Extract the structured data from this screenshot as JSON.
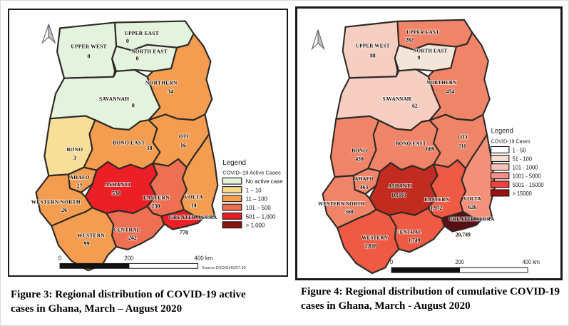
{
  "page": {
    "background": "#ffffff"
  },
  "figures": [
    {
      "caption": "Figure 3: Regional distribution of COVID-19 active cases in Ghana, March – August 2020",
      "legend_title": "Legend",
      "legend_subtitle": "COVID–19 Active Cases",
      "legend_items": [
        {
          "label": "No active case",
          "color": "#e3f3dd"
        },
        {
          "label": "1 – 10",
          "color": "#f6db8e"
        },
        {
          "label": "11 – 100",
          "color": "#f49d51"
        },
        {
          "label": "101 – 500",
          "color": "#ee7052"
        },
        {
          "label": "501 – 1,000",
          "color": "#ec1c24"
        },
        {
          "label": "> 1,000",
          "color": "#8b150f"
        }
      ],
      "scalebar_ticks": [
        "0",
        "200",
        "400 km"
      ],
      "source_note": "Source:DSD/GHS/07.20",
      "regions": {
        "upper_west": {
          "name": "UPPER WEST",
          "value": "0",
          "color": "#e3f3dd"
        },
        "upper_east": {
          "name": "UPPER EAST",
          "value": "0",
          "color": "#e3f3dd"
        },
        "north_east": {
          "name": "NORTH EAST",
          "value": "0",
          "color": "#e3f3dd"
        },
        "northern": {
          "name": "NORTHERN",
          "value": "34",
          "color": "#f49d51"
        },
        "savannah": {
          "name": "SAVANNAH",
          "value": "0",
          "color": "#e3f3dd"
        },
        "bono": {
          "name": "BONO",
          "value": "3",
          "color": "#f7df99"
        },
        "bono_east": {
          "name": "BONO EAST",
          "value": "38",
          "color": "#f49d51"
        },
        "oti": {
          "name": "OTI",
          "value": "16",
          "color": "#f49d51"
        },
        "ahafo": {
          "name": "AHAFO",
          "value": "27",
          "color": "#f49d51"
        },
        "ashanti": {
          "name": "ASHANTI",
          "value": "538",
          "color": "#ec1f26"
        },
        "eastern": {
          "name": "EASTERN",
          "value": "230",
          "color": "#ee7052"
        },
        "volta": {
          "name": "VOLTA",
          "value": "14",
          "color": "#f49d51"
        },
        "western_north": {
          "name": "WESTERN NORTH",
          "value": "26",
          "color": "#f49d51"
        },
        "western": {
          "name": "WESTERN",
          "value": "99",
          "color": "#f49d51"
        },
        "central": {
          "name": "CENTRAL",
          "value": "242",
          "color": "#ee7052"
        },
        "greater_accra": {
          "name": "GREATER ACCRA",
          "value": "770",
          "color": "#ec1f26"
        }
      }
    },
    {
      "caption": "Figure 4: Regional distribution of cumulative COVID-19 cases in Ghana, March - August 2020",
      "legend_title": "Legend",
      "legend_subtitle": "COVID-19 Cases",
      "legend_items": [
        {
          "label": "1 - 50",
          "color": "#fefefe"
        },
        {
          "label": "51 - 100",
          "color": "#f8ddd4"
        },
        {
          "label": "101 - 1000",
          "color": "#f6c2b6"
        },
        {
          "label": "1001 - 5000",
          "color": "#f78f84"
        },
        {
          "label": "5001 - 15000",
          "color": "#f2413a"
        },
        {
          "label": "> 15000",
          "color": "#9e1113"
        }
      ],
      "scalebar_ticks": [
        "0",
        "200",
        "400 km"
      ],
      "source_note": "",
      "regions": {
        "upper_west": {
          "name": "UPPER WEST",
          "value": "88",
          "color": "#f7cfc2"
        },
        "upper_east": {
          "name": "UPPER EAST",
          "value": "282",
          "color": "#f08468"
        },
        "north_east": {
          "name": "NORTH EAST",
          "value": "9",
          "color": "#f3e5da"
        },
        "northern": {
          "name": "NORTHERN",
          "value": "454",
          "color": "#f08468"
        },
        "savannah": {
          "name": "SAVANNAH",
          "value": "62",
          "color": "#f7cfc2"
        },
        "bono": {
          "name": "BONO",
          "value": "439",
          "color": "#f08468"
        },
        "bono_east": {
          "name": "BONO EAST",
          "value": "689",
          "color": "#f08468"
        },
        "oti": {
          "name": "OTI",
          "value": "211",
          "color": "#f08468"
        },
        "ahafo": {
          "name": "AHAFO",
          "value": "463",
          "color": "#f08468"
        },
        "ashanti": {
          "name": "ASHANTI",
          "value": "10,393",
          "color": "#c12b20"
        },
        "eastern": {
          "name": "EASTERN",
          "value": "1,972",
          "color": "#ee5a43"
        },
        "volta": {
          "name": "VOLTA",
          "value": "626",
          "color": "#f4917a"
        },
        "western_north": {
          "name": "WESTERN NORTH",
          "value": "568",
          "color": "#f08468"
        },
        "western": {
          "name": "WESTERN",
          "value": "2,818",
          "color": "#ee5a43"
        },
        "central": {
          "name": "CENTRAL",
          "value": "1,749",
          "color": "#ee5a43"
        },
        "greater_accra": {
          "name": "GREATER ACCRA",
          "value": "20,749",
          "color": "#5a0f12"
        }
      }
    }
  ]
}
